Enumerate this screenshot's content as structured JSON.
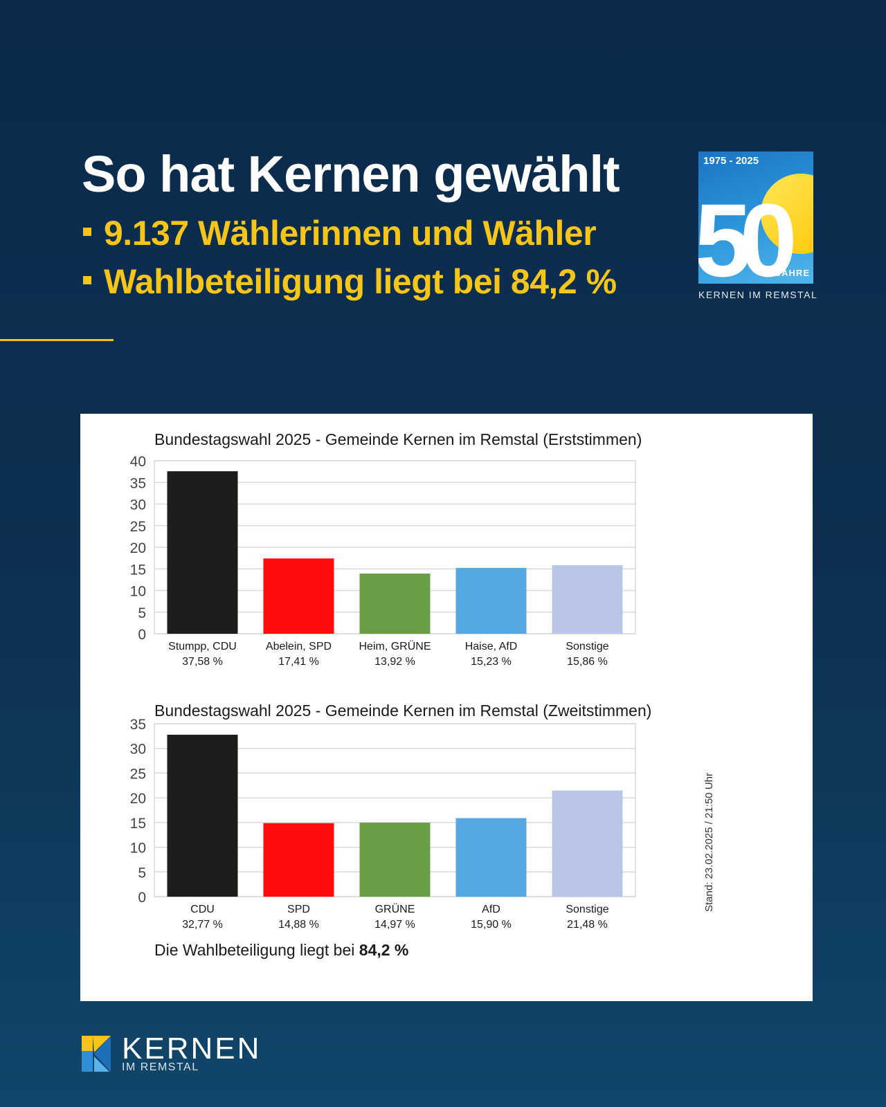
{
  "header": {
    "title": "So hat Kernen gewählt",
    "bullets": [
      "9.137 Wählerinnen und Wähler",
      "Wahlbeteiligung liegt bei 84,2 %"
    ]
  },
  "anniversary_logo": {
    "years": "1975 - 2025",
    "number": "50",
    "jahre": "JAHRE",
    "caption": "KERNEN IM REMSTAL"
  },
  "colors": {
    "background": "#0d3152",
    "accent": "#f5c518",
    "bars": [
      "#1d1d1b",
      "#ff0d0d",
      "#6a9e46",
      "#55a8e0",
      "#b8c5e6"
    ]
  },
  "chart_data": [
    {
      "type": "bar",
      "title": "Bundestagswahl 2025 - Gemeinde Kernen im Remstal (Erststimmen)",
      "categories": [
        "Stumpp, CDU",
        "Abelein, SPD",
        "Heim, GRÜNE",
        "Haise, AfD",
        "Sonstige"
      ],
      "values": [
        37.58,
        17.41,
        13.92,
        15.23,
        15.86
      ],
      "value_labels": [
        "37,58 %",
        "17,41 %",
        "13,92 %",
        "15,23 %",
        "15,86 %"
      ],
      "ylim": [
        0,
        40
      ],
      "yticks": [
        0,
        5,
        10,
        15,
        20,
        25,
        30,
        35,
        40
      ],
      "grid": true
    },
    {
      "type": "bar",
      "title": "Bundestagswahl 2025 - Gemeinde Kernen im Remstal (Zweitstimmen)",
      "categories": [
        "CDU",
        "SPD",
        "GRÜNE",
        "AfD",
        "Sonstige"
      ],
      "values": [
        32.77,
        14.88,
        14.97,
        15.9,
        21.48
      ],
      "value_labels": [
        "32,77 %",
        "14,88 %",
        "14,97 %",
        "15,90 %",
        "21,48 %"
      ],
      "ylim": [
        0,
        35
      ],
      "yticks": [
        0,
        5,
        10,
        15,
        20,
        25,
        30,
        35
      ],
      "grid": true
    }
  ],
  "turnout": {
    "prefix": "Die Wahlbeteiligung liegt bei",
    "value": "84,2 %"
  },
  "stand": "Stand: 23.02.2025 / 21:50 Uhr",
  "footer": {
    "name": "KERNEN",
    "sub": "IM REMSTAL"
  }
}
